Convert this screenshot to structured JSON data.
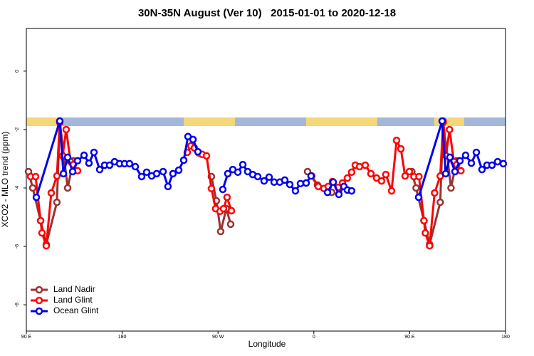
{
  "chart_data": {
    "type": "line",
    "title": "30N-35N August (Ver 10)   2015-01-01 to 2020-12-18",
    "x_label": "Longitude",
    "y_label": "XCO2 - MLO trend (ppm)",
    "xlim": [
      90,
      540
    ],
    "ylim": [
      -8.9,
      1.46
    ],
    "xticks": [
      {
        "value": 90,
        "label": "90 E"
      },
      180,
      {
        "value": 270,
        "label": "90 W"
      },
      {
        "value": 360,
        "label": "0"
      },
      {
        "value": 450,
        "label": "90 E"
      },
      {
        "value": 540,
        "label": "180"
      }
    ],
    "yticks": [
      -8,
      -6,
      -4,
      -2,
      0
    ],
    "legend": "bottom-left",
    "series": [
      {
        "name": "Land Nadir",
        "color": "#993333",
        "x": [
          92,
          96,
          103.4,
          108.7,
          118.7,
          121.4,
          128.8,
          134.1,
          null,
          263.8,
          268.5,
          272.5,
          277.8,
          281.9,
          null,
          354.1,
          358.1,
          363.4,
          376.8,
          null,
          452,
          456,
          463.4,
          468.7,
          478.7,
          481.4,
          488.8,
          494.1
        ],
        "values": [
          -3.44,
          -4,
          -5.12,
          -5.93,
          -4.49,
          -1.71,
          -4,
          -3.07,
          null,
          -3.61,
          -4.44,
          -5.49,
          -4.71,
          -5.24,
          null,
          -3.44,
          -3.59,
          -3.9,
          -4.15,
          null,
          -3.44,
          -4,
          -5.12,
          -5.93,
          -4.49,
          -1.71,
          -4,
          -3.07
        ]
      },
      {
        "name": "Land Glint",
        "color": "#ff0000",
        "x": [
          94,
          98.7,
          103.4,
          104.7,
          108.7,
          113.4,
          118.7,
          121.4,
          124.1,
          127.4,
          131.5,
          134.1,
          138.1,
          null,
          241.1,
          244.5,
          247.8,
          251.8,
          255.1,
          259.2,
          263.8,
          267.8,
          271.9,
          275.2,
          278.5,
          282.6,
          null,
          357.4,
          364.1,
          369.5,
          373.5,
          377.5,
          382.8,
          386.9,
          391.5,
          395.5,
          398.9,
          402.9,
          408.3,
          413.6,
          418.9,
          423.6,
          427.6,
          433,
          437.7,
          441.7,
          445.7,
          449.7,
          454,
          458.7,
          463.4,
          464.7,
          468.7,
          473.4,
          478.7,
          481.4,
          484.1,
          487.4,
          491.5,
          494.1,
          498.1
        ],
        "values": [
          -3.61,
          -3.61,
          -5.12,
          -5.54,
          -5.98,
          -4.17,
          -3.59,
          -1.76,
          -2.9,
          -2,
          -3.1,
          -3.2,
          -3.41,
          null,
          -2.78,
          -2.56,
          -2.63,
          -2.8,
          -2.85,
          -2.9,
          -4.02,
          -4.71,
          -4.8,
          -4.71,
          -4.32,
          -4.78,
          null,
          -3.59,
          -3.95,
          -4.02,
          -3.95,
          -3.78,
          -3.98,
          -3.83,
          -3.66,
          -3.46,
          -3.22,
          -3.27,
          -3.22,
          -3.51,
          -3.66,
          -3.76,
          -3.54,
          -4.1,
          -2.37,
          -2.66,
          -3.59,
          -3.44,
          -3.61,
          -3.61,
          -5.12,
          -5.54,
          -5.98,
          -4.17,
          -3.59,
          -1.76,
          -2.9,
          -2,
          -3.1,
          -3.2,
          -3.41
        ]
      },
      {
        "name": "Ocean Glint",
        "color": "#0000ee",
        "x": [
          99.4,
          121.4,
          124.8,
          128.8,
          133.5,
          138.1,
          144.2,
          148.8,
          153.5,
          158.9,
          163.5,
          168.2,
          172.9,
          177.6,
          182.3,
          186.9,
          192.3,
          198.3,
          203,
          207.7,
          212.4,
          218.4,
          223,
          227.7,
          233.1,
          237.8,
          241.8,
          246.5,
          251.1,
          null,
          274.5,
          279.2,
          283.9,
          288.6,
          293.3,
          297.9,
          302.6,
          307.3,
          313.3,
          318,
          322.7,
          328,
          332.7,
          337.4,
          342.7,
          347.4,
          352.8,
          357.4,
          null,
          372.8,
          378.2,
          383.5,
          388.2,
          391.5,
          395.5,
          null,
          458.4,
          480.5,
          483.8,
          487.8,
          492.5,
          497.2,
          502.5,
          507.9,
          512.6,
          517.9,
          522.6,
          527.3,
          532.6,
          537.9
        ],
        "values": [
          -4.32,
          -1.71,
          -3.51,
          -2.95,
          -3.44,
          -3.07,
          -2.88,
          -3.15,
          -2.78,
          -3.37,
          -3.22,
          -3.22,
          -3.1,
          -3.17,
          -3.17,
          -3.17,
          -3.27,
          -3.61,
          -3.46,
          -3.59,
          -3.51,
          -3.44,
          -3.95,
          -3.51,
          -3.39,
          -3.05,
          -2.24,
          -2.34,
          -2.76,
          null,
          -4.05,
          -3.51,
          -3.37,
          -3.46,
          -3.2,
          -3.44,
          -3.54,
          -3.61,
          -3.76,
          -3.63,
          -3.8,
          -3.8,
          -3.73,
          -3.88,
          -4.1,
          -3.85,
          -3.83,
          -3.59,
          null,
          -4.15,
          -3.8,
          -4.22,
          -3.95,
          -4.07,
          -4.1,
          null,
          -4.32,
          -1.71,
          -3.51,
          -2.95,
          -3.44,
          -3.07,
          -2.88,
          -3.15,
          -2.78,
          -3.37,
          -3.22,
          -3.22,
          -3.1,
          -3.17
        ]
      }
    ]
  }
}
